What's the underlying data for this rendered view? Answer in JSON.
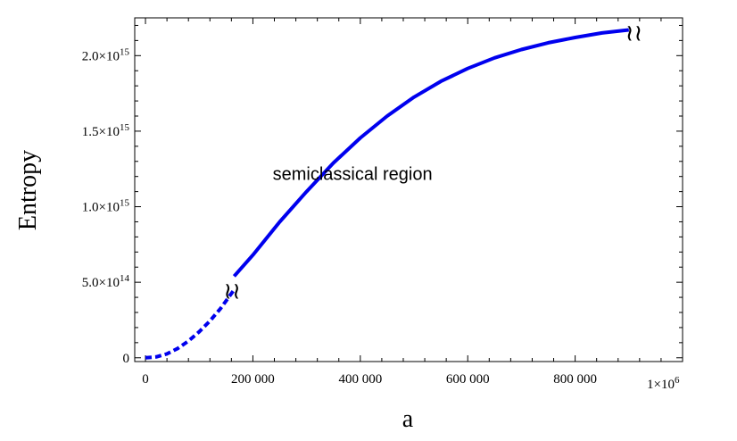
{
  "chart_data": {
    "type": "line",
    "xlabel": "a",
    "ylabel": "Entropy",
    "xlim": [
      -20000,
      1000000
    ],
    "ylim": [
      -25000000000000,
      2250000000000000
    ],
    "x_ticks": [
      {
        "value": 0,
        "label": "0"
      },
      {
        "value": 200000,
        "label": "200 000"
      },
      {
        "value": 400000,
        "label": "400 000"
      },
      {
        "value": 600000,
        "label": "600 000"
      },
      {
        "value": 800000,
        "label": "800 000"
      }
    ],
    "x_multiplier_label": "1×10",
    "x_multiplier_exp": "6",
    "y_ticks": [
      {
        "value": 0,
        "mant": "0",
        "exp": ""
      },
      {
        "value": 500000000000000,
        "mant": "5.0×10",
        "exp": "14"
      },
      {
        "value": 1000000000000000,
        "mant": "1.0×10",
        "exp": "15"
      },
      {
        "value": 1500000000000000,
        "mant": "1.5×10",
        "exp": "15"
      },
      {
        "value": 2000000000000000,
        "mant": "2.0×10",
        "exp": "15"
      }
    ],
    "annotation": "semiclassical region",
    "break_mark": "≀≀",
    "series": [
      {
        "style": "dashed",
        "color": "#0000ee",
        "x": [
          0,
          20000,
          40000,
          60000,
          80000,
          100000,
          120000,
          140000,
          165000
        ],
        "y": [
          0,
          6000000000000,
          26000000000000,
          62000000000000,
          111000000000000,
          172000000000000,
          244000000000000,
          327000000000000,
          450000000000000
        ]
      },
      {
        "style": "solid",
        "color": "#0000ee",
        "x": [
          165000,
          200000,
          250000,
          300000,
          350000,
          400000,
          450000,
          500000,
          550000,
          600000,
          650000,
          700000,
          750000,
          800000,
          850000,
          900000
        ],
        "y": [
          540000000000000,
          680000000000000,
          900000000000000,
          1100000000000000,
          1290000000000000,
          1455000000000000,
          1600000000000000,
          1725000000000000,
          1830000000000000,
          1915000000000000,
          1985000000000000,
          2040000000000000,
          2085000000000000,
          2120000000000000,
          2150000000000000,
          2170000000000000
        ]
      }
    ]
  }
}
